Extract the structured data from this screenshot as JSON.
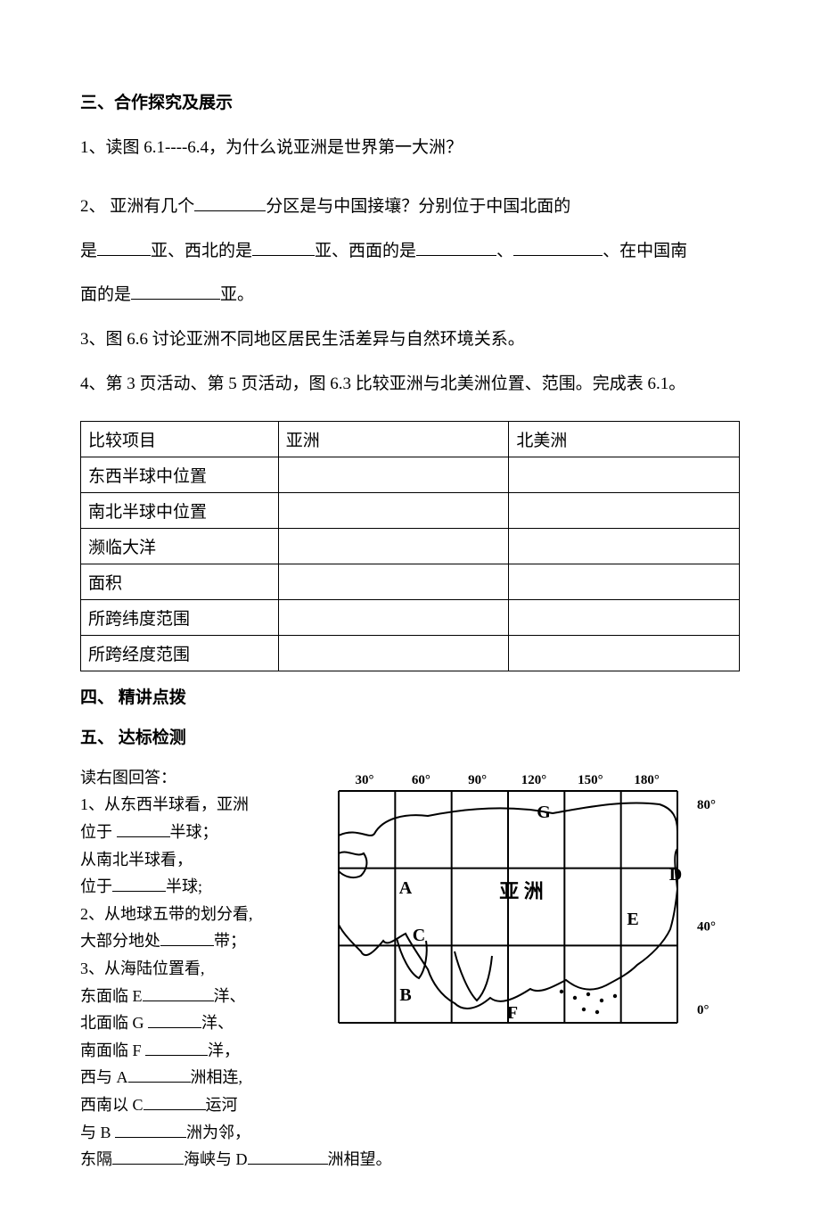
{
  "section3": {
    "heading": "三、合作探究及展示",
    "q1": "1、读图 6.1----6.4，为什么说亚洲是世界第一大洲？",
    "q2_a": "2、 亚洲有几个",
    "q2_b": "分区是与中国接壤？分别位于中国北面的",
    "q2_c": "是",
    "q2_d": "亚、西北的是",
    "q2_e": "亚、西面的是",
    "q2_f": "、",
    "q2_g": "、在中国南",
    "q2_h": "面的是",
    "q2_i": "亚。",
    "q3": "3、图 6.6 讨论亚洲不同地区居民生活差异与自然环境关系。",
    "q4": "4、第 3 页活动、第 5 页活动，图 6.3 比较亚洲与北美洲位置、范围。完成表 6.1。"
  },
  "table": {
    "h1": "比较项目",
    "h2": "亚洲",
    "h3": "北美洲",
    "r1": "东西半球中位置",
    "r2": "南北半球中位置",
    "r3": "濒临大洋",
    "r4": "面积",
    "r5": "所跨纬度范围",
    "r6": "所跨经度范围"
  },
  "section4": {
    "heading": "四、 精讲点拨"
  },
  "section5": {
    "heading": "五、 达标检测",
    "intro": "读右图回答：",
    "l1a": "1、从东西半球看，亚洲",
    "l1b_a": "位于 ",
    "l1b_b": "半球；",
    "l1c": "从南北半球看，",
    "l1d_a": "位于",
    "l1d_b": "半球;",
    "l2a": "2、从地球五带的划分看,",
    "l2b_a": "大部分地处",
    "l2b_b": "带；",
    "l3a": "3、从海陆位置看,",
    "l3b_a": "东面临 E",
    "l3b_b": "洋、",
    "l3c_a": "北面临 G  ",
    "l3c_b": "洋、",
    "l3d_a": "南面临 F  ",
    "l3d_b": "洋，",
    "l3e_a": "西与 A",
    "l3e_b": "洲相连,",
    "l3f_a": "西南以 C",
    "l3f_b": "运河",
    "l3g_a": "与 B  ",
    "l3g_b": "洲为邻，",
    "l3h_a": "东隔",
    "l3h_b": "海峡与 D",
    "l3h_c": "洲相望。"
  },
  "map": {
    "lon_labels": [
      "30°",
      "60°",
      "90°",
      "120°",
      "150°",
      "180°"
    ],
    "lat_labels": [
      "80°",
      "40°",
      "0°"
    ],
    "center_label": "亚  洲",
    "markers": {
      "A": "A",
      "B": "B",
      "C": "C",
      "D": "D",
      "E": "E",
      "F": "F",
      "G": "G"
    },
    "grid_color": "#000000",
    "line_width": 2,
    "bg": "#ffffff"
  }
}
